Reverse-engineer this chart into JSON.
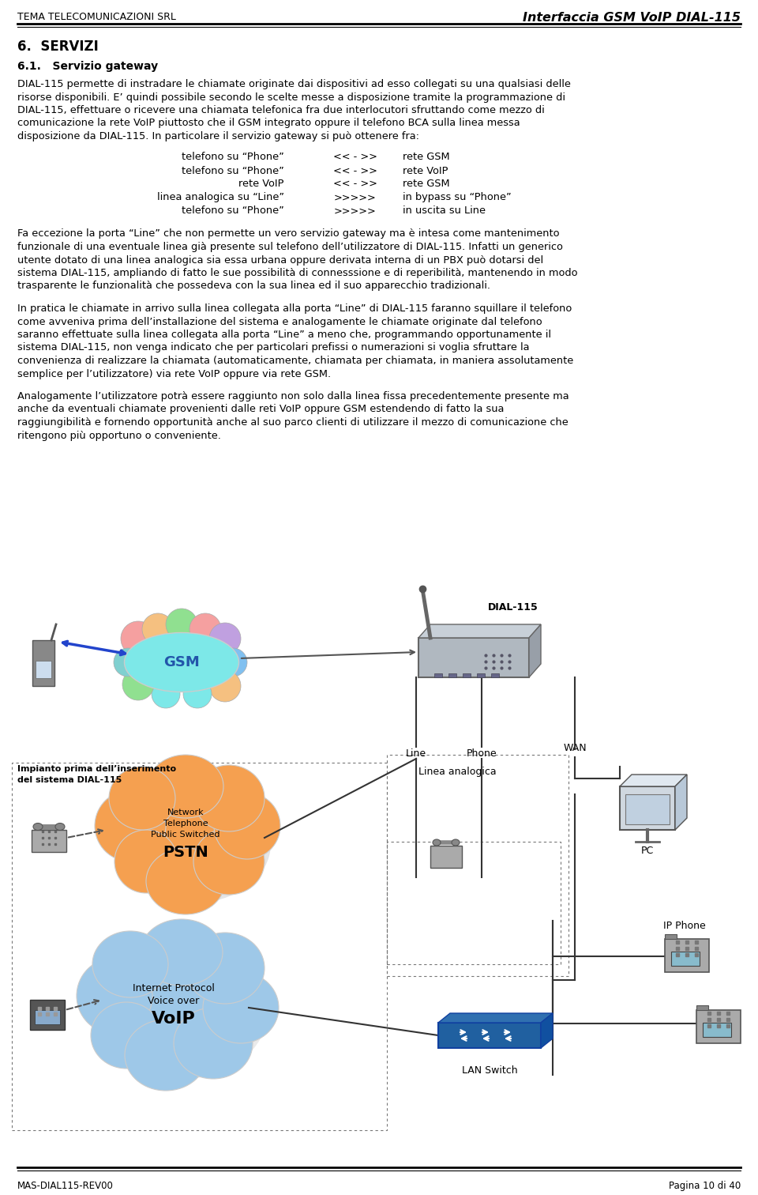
{
  "header_left": "TEMA TELECOMUNICAZIONI SRL",
  "header_right": "Interfaccia GSM VoIP DIAL-115",
  "footer_left": "MAS-DIAL115-REV00",
  "footer_right": "Pagina 10 di 40",
  "section": "6.  SERVIZI",
  "subsection": "6.1.   Servizio gateway",
  "para1_lines": [
    "DIAL-115 permette di instradare le chiamate originate dai dispositivi ad esso collegati su una qualsiasi delle",
    "risorse disponibili. E’ quindi possibile secondo le scelte messe a disposizione tramite la programmazione di",
    "DIAL-115, effettuare o ricevere una chiamata telefonica fra due interlocutori sfruttando come mezzo di",
    "comunicazione la rete VoIP piuttosto che il GSM integrato oppure il telefono BCA sulla linea messa",
    "disposizione da DIAL-115. In particolare il servizio gateway si può ottenere fra:"
  ],
  "table_rows": [
    [
      "telefono su “Phone”",
      "<< - >>",
      "rete GSM"
    ],
    [
      "telefono su “Phone”",
      "<< - >>",
      "rete VoIP"
    ],
    [
      "rete VoIP",
      "<< - >>",
      "rete GSM"
    ],
    [
      "linea analogica su “Line”",
      ">>>>>",
      "in bypass su “Phone”"
    ],
    [
      "telefono su “Phone”",
      ">>>>>",
      "in uscita su Line"
    ]
  ],
  "para2_lines": [
    "Fa eccezione la porta “Line” che non permette un vero servizio gateway ma è intesa come mantenimento",
    "funzionale di una eventuale linea già presente sul telefono dell’utilizzatore di DIAL-115. Infatti un generico",
    "utente dotato di una linea analogica sia essa urbana oppure derivata interna di un PBX può dotarsi del",
    "sistema DIAL-115, ampliando di fatto le sue possibilità di connesssione e di reperibilità, mantenendo in modo",
    "trasparente le funzionalità che possedeva con la sua linea ed il suo apparecchio tradizionali."
  ],
  "para3_lines": [
    "In pratica le chiamate in arrivo sulla linea collegata alla porta “Line” di DIAL-115 faranno squillare il telefono",
    "come avveniva prima dell’installazione del sistema e analogamente le chiamate originate dal telefono",
    "saranno effettuate sulla linea collegata alla porta “Line” a meno che, programmando opportunamente il",
    "sistema DIAL-115, non venga indicato che per particolari prefissi o numerazioni si voglia sfruttare la",
    "convenienza di realizzare la chiamata (automaticamente, chiamata per chiamata, in maniera assolutamente",
    "semplice per l’utilizzatore) via rete VoIP oppure via rete GSM."
  ],
  "para4_lines": [
    "Analogamente l’utilizzatore potrà essere raggiunto non solo dalla linea fissa precedentemente presente ma",
    "anche da eventuali chiamate provenienti dalle reti VoIP oppure GSM estendendo di fatto la sua",
    "raggiungibilità e fornendo opportunità anche al suo parco clienti di utilizzare il mezzo di comunicazione che",
    "ritengono più opportuno o conveniente."
  ],
  "bg_color": "#ffffff",
  "text_color": "#000000"
}
